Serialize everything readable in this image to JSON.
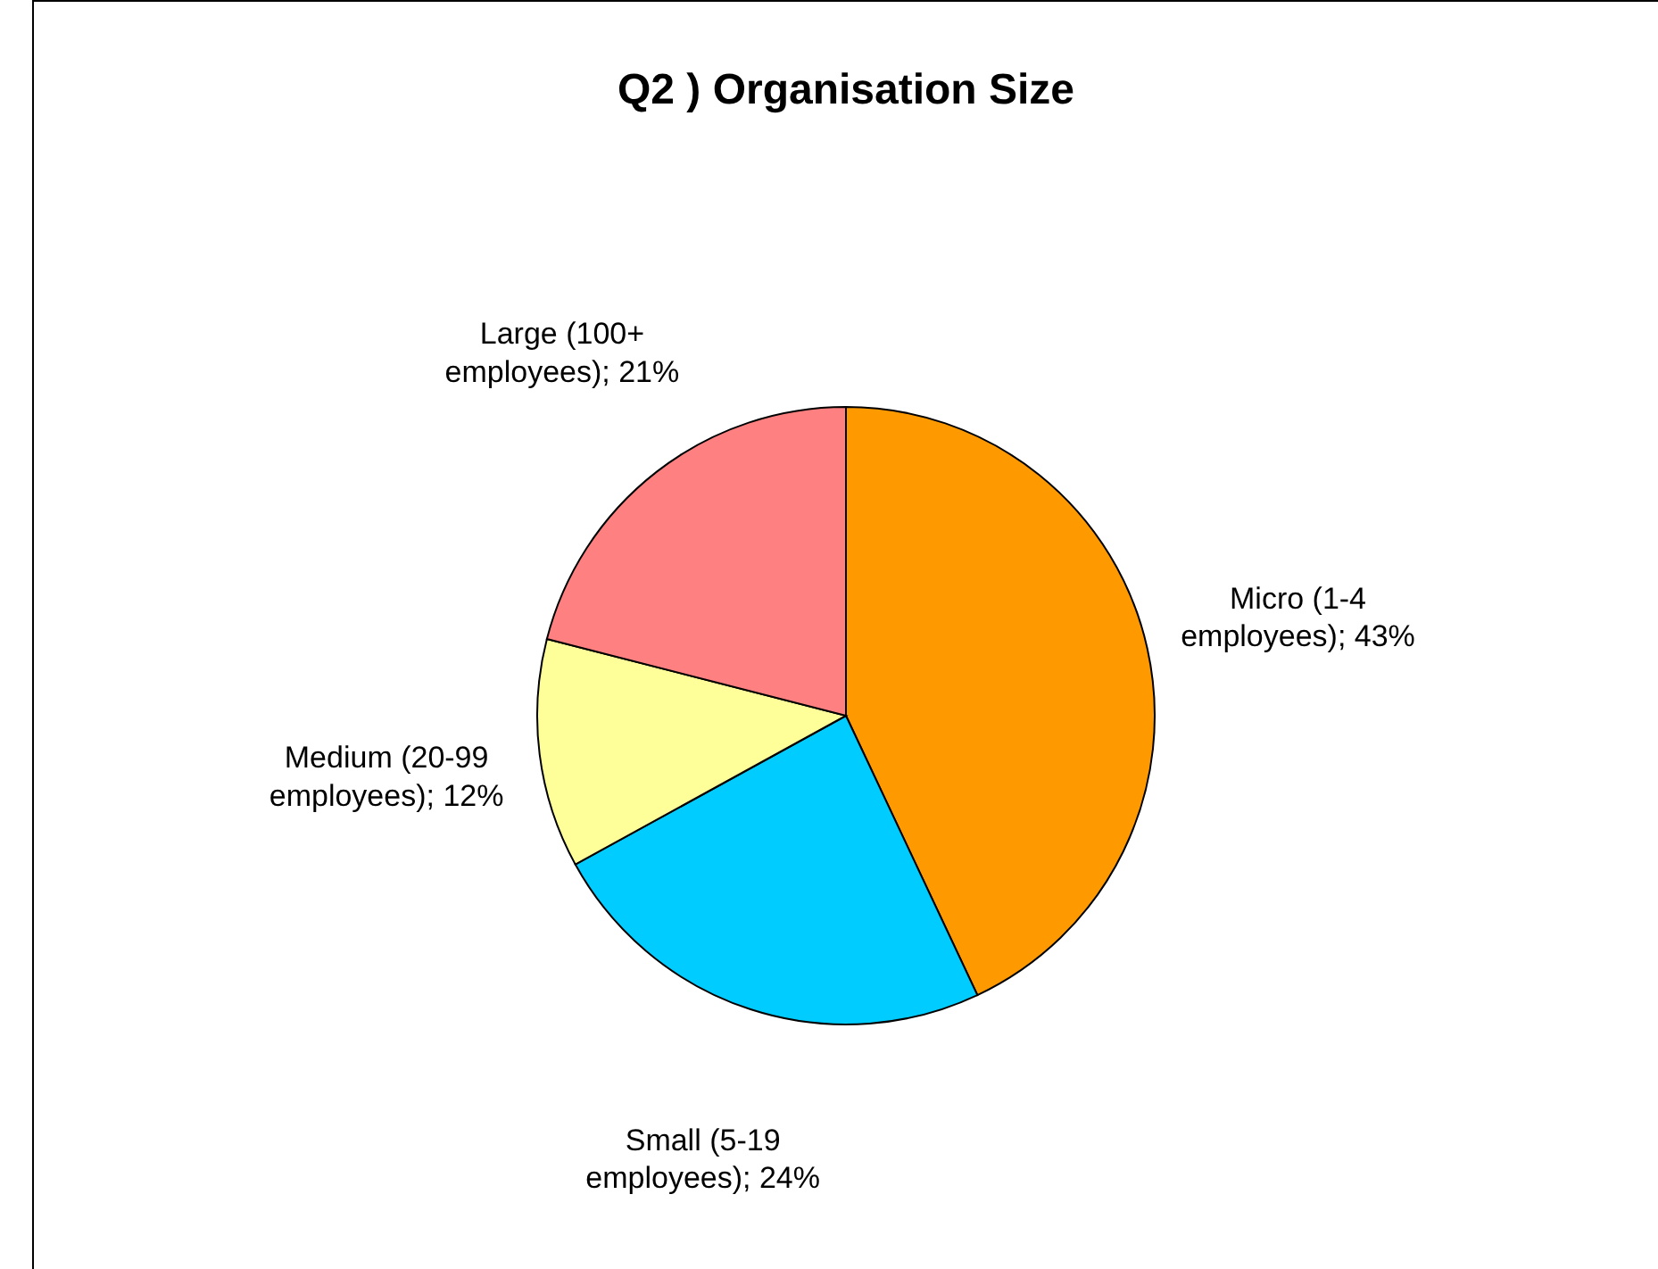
{
  "chart_data": {
    "type": "pie",
    "title": "Q2 ) Organisation Size",
    "categories": [
      "Micro (1-4 employees)",
      "Small (5-19 employees)",
      "Medium (20-99 employees)",
      "Large (100+ employees)"
    ],
    "values": [
      43,
      24,
      12,
      21
    ],
    "value_labels": [
      "43%",
      "24%",
      "12%",
      "21%"
    ],
    "colors": [
      "#ff9900",
      "#00ccff",
      "#ffff99",
      "#ff8080"
    ],
    "legend": false
  }
}
